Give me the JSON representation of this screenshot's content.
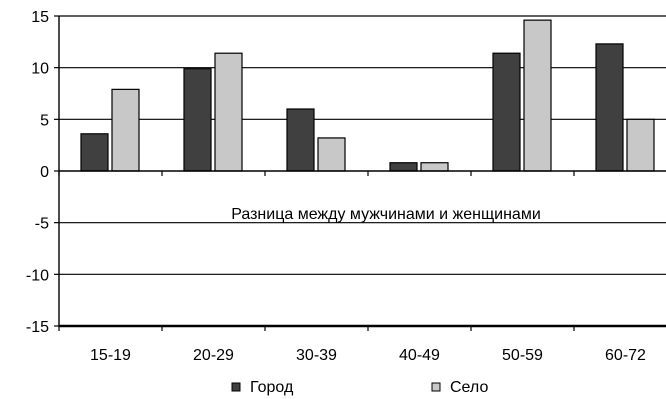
{
  "chart_data": {
    "type": "bar",
    "categories": [
      "15-19",
      "20-29",
      "30-39",
      "40-49",
      "50-59",
      "60-72"
    ],
    "series": [
      {
        "name": "Город",
        "values": [
          3.6,
          9.9,
          6.0,
          0.8,
          11.4,
          12.3
        ],
        "color": "#404040"
      },
      {
        "name": "Село",
        "values": [
          7.9,
          11.4,
          3.2,
          0.8,
          14.6,
          5.0
        ],
        "color": "#c8c8c8"
      }
    ],
    "annotation": "Разница между мужчинами и женщинами",
    "ylim": [
      -15,
      15
    ],
    "yticks": [
      15,
      10,
      5,
      0,
      -5,
      -10,
      -15
    ],
    "ytick_labels": [
      "15",
      "10",
      "5",
      "0",
      "-5",
      "-10",
      "-15"
    ],
    "grid": true,
    "legend": "bottom"
  }
}
